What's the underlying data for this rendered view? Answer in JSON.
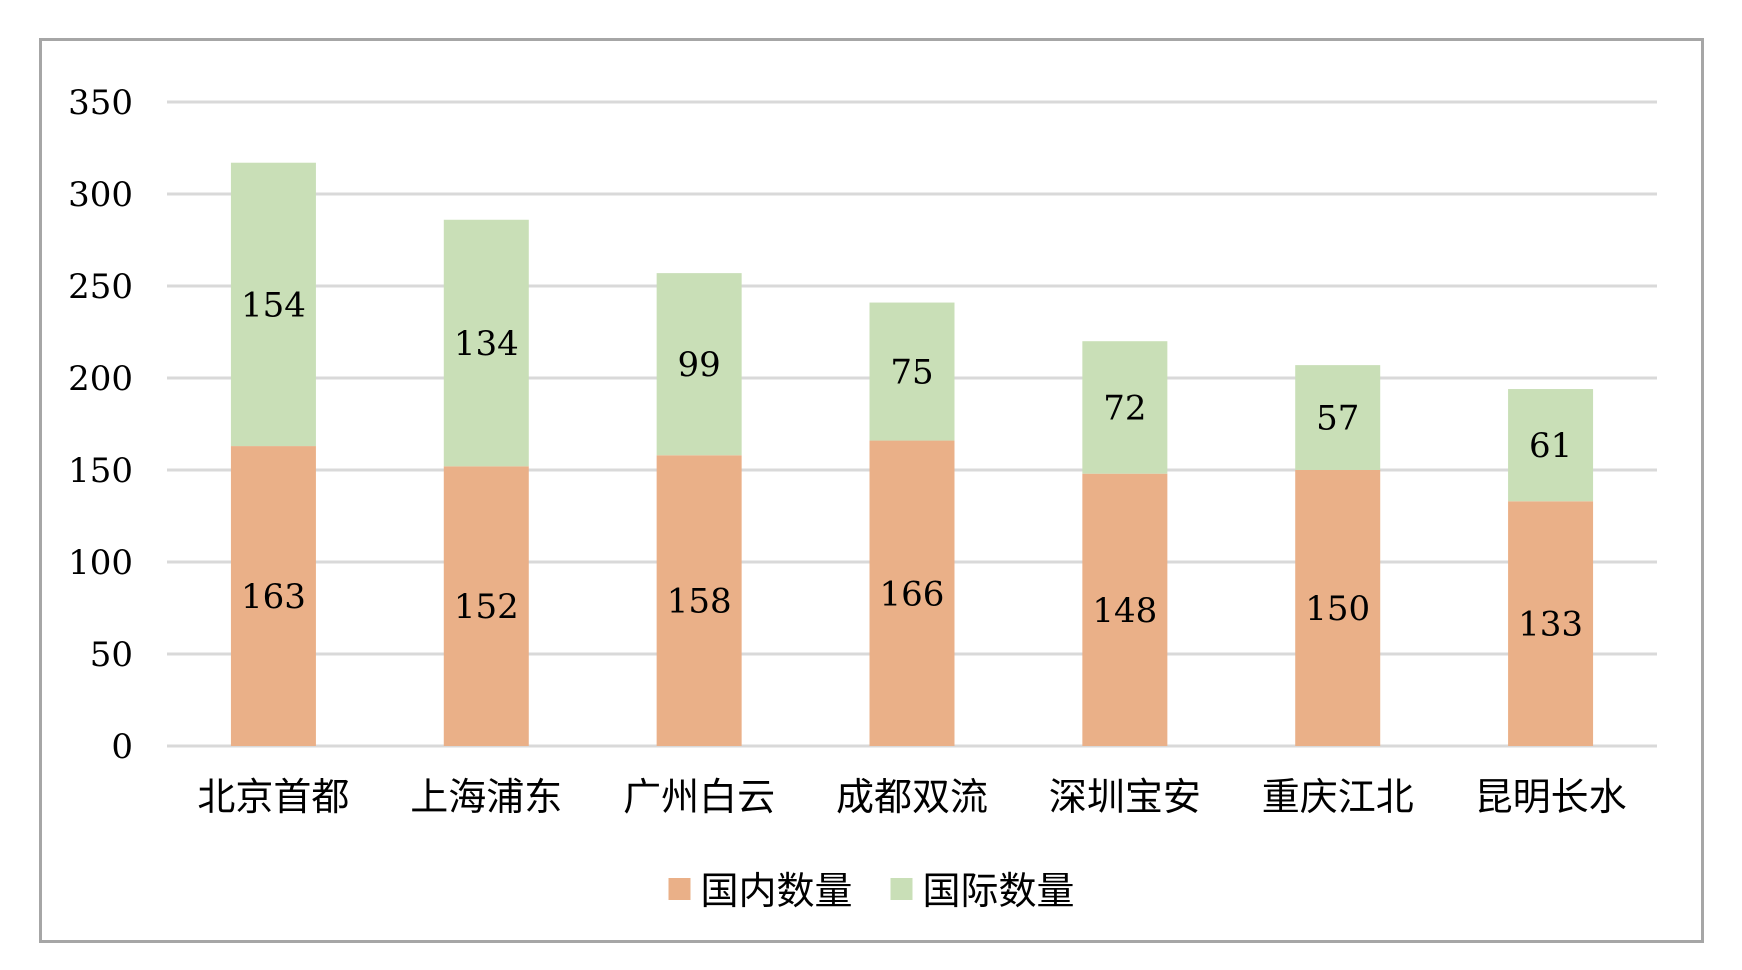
{
  "chart_data": {
    "type": "bar",
    "stacked": true,
    "title": "",
    "xlabel": "",
    "ylabel": "",
    "ylim": [
      0,
      350
    ],
    "yticks": [
      0,
      50,
      100,
      150,
      200,
      250,
      300,
      350
    ],
    "grid": true,
    "legend_position": "bottom",
    "categories": [
      "北京首都",
      "上海浦东",
      "广州白云",
      "成都双流",
      "深圳宝安",
      "重庆江北",
      "昆明长水"
    ],
    "series": [
      {
        "name": "国内数量",
        "color": "#EAB088",
        "values": [
          163,
          152,
          158,
          166,
          148,
          150,
          133
        ]
      },
      {
        "name": "国际数量",
        "color": "#C9DFB7",
        "values": [
          154,
          134,
          99,
          75,
          72,
          57,
          61
        ]
      }
    ]
  }
}
